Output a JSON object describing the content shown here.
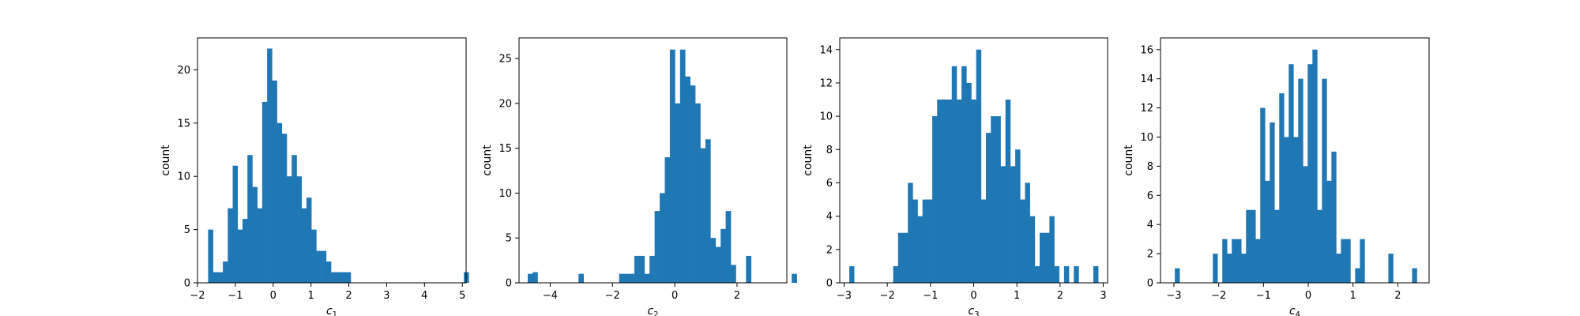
{
  "figure": {
    "bar_color": "#1f77b4",
    "background": "#ffffff"
  },
  "chart_data": [
    {
      "type": "histogram",
      "xlabel_var": "c",
      "xlabel_sub": "1",
      "ylabel": "count",
      "xlim": [
        -2.0,
        5.1
      ],
      "ylim": [
        0,
        23
      ],
      "xticks": [
        -2,
        -1,
        0,
        1,
        2,
        3,
        4,
        5
      ],
      "yticks": [
        0,
        5,
        10,
        15,
        20
      ],
      "bins": {
        "start": -1.72,
        "width": 0.13,
        "counts": [
          5,
          1,
          1,
          2,
          7,
          11,
          5,
          6,
          12,
          9,
          7,
          17,
          22,
          19,
          15,
          14,
          10,
          12,
          10,
          7,
          8,
          5,
          3,
          3,
          2,
          1,
          1,
          1,
          1,
          0,
          0,
          0,
          0,
          0,
          0,
          0,
          0,
          0,
          0,
          0,
          0,
          0,
          0,
          0,
          0,
          0,
          0,
          0,
          0,
          0,
          0,
          0,
          1,
          0,
          0,
          0,
          0,
          0,
          0,
          0,
          0,
          0,
          0,
          0,
          0,
          0,
          1
        ]
      }
    },
    {
      "type": "histogram",
      "xlabel_var": "c",
      "xlabel_sub": "2",
      "ylabel": "count",
      "xlim": [
        -5.0,
        3.6
      ],
      "ylim": [
        0,
        27.3
      ],
      "xticks": [
        -4,
        -2,
        0,
        2
      ],
      "yticks": [
        0,
        5,
        10,
        15,
        20,
        25
      ],
      "bins": {
        "start": -4.72,
        "width": 0.163,
        "counts": [
          1,
          0,
          0,
          0,
          0,
          0,
          0,
          0,
          0,
          0,
          1,
          0,
          0,
          0,
          0,
          0,
          0,
          0,
          1,
          1,
          1,
          3,
          3,
          1,
          3,
          8,
          10,
          14,
          26,
          20,
          26,
          23,
          22,
          20,
          15,
          16,
          5,
          4,
          6,
          8,
          2,
          0,
          0,
          3,
          0,
          0,
          0,
          0,
          0,
          0,
          0,
          0,
          1
        ]
      }
    },
    {
      "type": "histogram",
      "xlabel_var": "c",
      "xlabel_sub": "3",
      "ylabel": "count",
      "xlim": [
        -3.1,
        3.1
      ],
      "ylim": [
        0,
        14.7
      ],
      "xticks": [
        -3,
        -2,
        -1,
        0,
        1,
        2,
        3
      ],
      "yticks": [
        0,
        2,
        4,
        6,
        8,
        10,
        12,
        14
      ],
      "bins": {
        "start": -2.88,
        "width": 0.113,
        "counts": [
          1,
          0,
          0,
          0,
          0,
          0,
          0,
          0,
          0,
          1,
          3,
          3,
          6,
          5,
          4,
          5,
          5,
          10,
          11,
          11,
          11,
          13,
          11,
          13,
          12,
          11,
          14,
          5,
          9,
          10,
          10,
          7,
          11,
          7,
          8,
          5,
          6,
          4,
          1,
          3,
          3,
          4,
          1,
          0,
          1,
          0,
          1,
          0,
          0,
          0,
          1
        ]
      }
    },
    {
      "type": "histogram",
      "xlabel_var": "c",
      "xlabel_sub": "4",
      "ylabel": "count",
      "xlim": [
        -3.3,
        2.7
      ],
      "ylim": [
        0,
        16.8
      ],
      "xticks": [
        -3,
        -2,
        -1,
        0,
        1,
        2
      ],
      "yticks": [
        0,
        2,
        4,
        6,
        8,
        10,
        12,
        14,
        16
      ],
      "bins": {
        "start": -2.98,
        "width": 0.106,
        "counts": [
          1,
          0,
          0,
          0,
          0,
          0,
          0,
          0,
          2,
          0,
          3,
          2,
          3,
          3,
          2,
          5,
          5,
          3,
          12,
          7,
          11,
          5,
          13,
          10,
          15,
          10,
          14,
          8,
          15,
          16,
          5,
          14,
          7,
          9,
          2,
          3,
          3,
          0,
          1,
          3,
          0,
          0,
          0,
          0,
          0,
          2,
          0,
          0,
          0,
          0,
          1
        ]
      }
    }
  ]
}
